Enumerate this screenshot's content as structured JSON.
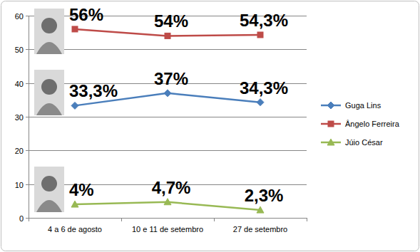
{
  "chart_data": {
    "type": "line",
    "categories": [
      "4 a 6 de agosto",
      "10 e 11 de setembro",
      "27 de setembro"
    ],
    "series": [
      {
        "name": "Guga Lins",
        "color": "#4a7ebb",
        "marker": "diamond",
        "values": [
          33.3,
          37,
          34.3
        ],
        "value_labels": [
          "33,3%",
          "37%",
          "34,3%"
        ]
      },
      {
        "name": "Ângelo Ferreira",
        "color": "#be4b48",
        "marker": "square",
        "values": [
          56,
          54,
          54.3
        ],
        "value_labels": [
          "56%",
          "54%",
          "54,3%"
        ]
      },
      {
        "name": "Júio César",
        "color": "#98b954",
        "marker": "triangle",
        "values": [
          4,
          4.7,
          2.3
        ],
        "value_labels": [
          "4%",
          "4,7%",
          "2,3%"
        ]
      }
    ],
    "ylim": [
      0,
      60
    ],
    "yticks": [
      0,
      10,
      20,
      30,
      40,
      50,
      60
    ],
    "grid": true,
    "legend": "right",
    "data_labels": true
  }
}
